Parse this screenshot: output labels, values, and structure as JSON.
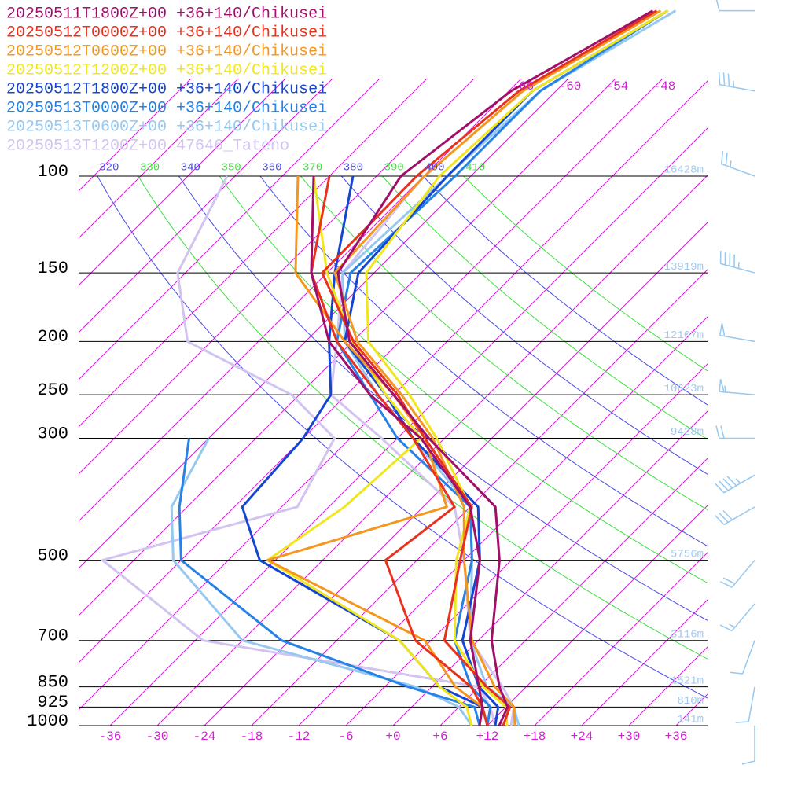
{
  "chart_data": {
    "type": "skewt",
    "pressure_levels": [
      1000,
      925,
      850,
      700,
      500,
      400,
      300,
      250,
      200,
      150,
      100,
      70,
      50
    ],
    "series": [
      {
        "name": "20250511T1800Z+00 +36+140/Chikusei",
        "color": "#a0106a",
        "temperature": [
          13.5,
          12.2,
          8.6,
          1.7,
          -7.5,
          -14.8,
          -32,
          -42,
          -54.4,
          -64.6,
          -68.9,
          -65.7,
          -57.9
        ],
        "dewpoint": [
          11,
          9,
          6,
          -1,
          -10,
          -18,
          -33,
          -45,
          -57,
          -68,
          -80,
          null,
          null
        ]
      },
      {
        "name": "20250512T0000Z+00 +36+140/Chikusei",
        "color": "#e8321e",
        "temperature": [
          14,
          12.5,
          7,
          -4.3,
          -12.5,
          -17.8,
          -32.5,
          -41.5,
          -53.9,
          -66.6,
          -66.9,
          -64.7,
          -57.4
        ],
        "dewpoint": [
          12,
          9,
          5,
          -8,
          -22,
          -20,
          -34,
          -44,
          -56,
          -68,
          -78,
          null,
          null
        ]
      },
      {
        "name": "20250512T0600Z+00 +36+140/Chikusei",
        "color": "#f5961e",
        "temperature": [
          15.5,
          13,
          8,
          -0.8,
          -12,
          -18.8,
          -31.5,
          -41,
          -53.4,
          -65,
          -65.9,
          -64.2,
          -56.9
        ],
        "dewpoint": [
          11,
          9,
          3,
          -6.8,
          -37,
          -21,
          -32.5,
          -42,
          -55,
          -70,
          -82,
          null,
          null
        ]
      },
      {
        "name": "20250512T1200Z+00 +36+140/Chikusei",
        "color": "#f0e61e",
        "temperature": [
          14.5,
          12,
          6.5,
          -3,
          -13,
          -18,
          -31,
          -40,
          -52,
          -61,
          -64,
          -63,
          -56
        ],
        "dewpoint": [
          10,
          7,
          1,
          -10,
          -37,
          -34,
          -33,
          -43,
          -54,
          -66,
          -80,
          null,
          null
        ]
      },
      {
        "name": "20250512T1800Z+00 +36+140/Chikusei",
        "color": "#1446d2",
        "temperature": [
          13,
          11,
          6,
          -2,
          -10,
          -17,
          -34,
          -43,
          -55,
          -62,
          -63,
          -63,
          -56
        ],
        "dewpoint": [
          12,
          9,
          1,
          -10,
          -38,
          -47,
          -48,
          -50,
          -57,
          -65,
          -75,
          null,
          null
        ]
      },
      {
        "name": "20250513T0000Z+00 +36+140/Chikusei",
        "color": "#2882e6",
        "temperature": [
          12,
          10,
          5,
          -3,
          -11,
          -18,
          -36,
          -45,
          -56,
          -63,
          -62,
          -62,
          -56
        ],
        "dewpoint": [
          11,
          8,
          -3,
          -25,
          -48,
          -55,
          -62.5,
          null,
          null,
          null,
          null,
          null,
          null
        ]
      },
      {
        "name": "20250513T0600Z+00 +36+140/Chikusei",
        "color": "#96c8f0",
        "temperature": [
          16,
          13,
          7,
          -1,
          -11,
          -18,
          -34,
          -44,
          -55,
          -64,
          -63,
          -62,
          -55
        ],
        "dewpoint": [
          10,
          6,
          -2,
          -30,
          -49,
          -56,
          -60,
          null,
          null,
          null,
          null,
          null,
          null
        ]
      },
      {
        "name": "20250513T1200Z+00 47646_Tateno",
        "color": "#d2c3f0",
        "temperature": [
          15,
          13,
          9,
          -1,
          -12,
          -20,
          -38,
          -50,
          -56,
          -64,
          -66,
          null,
          null
        ],
        "dewpoint": [
          13,
          10,
          6,
          -35,
          -58,
          -40,
          -44,
          -55,
          -75,
          -85,
          -91,
          null,
          null
        ]
      }
    ],
    "yticks": [
      100,
      150,
      200,
      250,
      300,
      500,
      700,
      850,
      925,
      1000
    ],
    "ylim": [
      1000,
      50
    ],
    "log_scale": true,
    "height_labels": [
      "16428m",
      "13919m",
      "12107m",
      "10623m",
      "9428m",
      "5756m",
      "3116m",
      "1521m",
      "810m",
      "141m"
    ],
    "xticks": [
      -36,
      -30,
      -24,
      -18,
      -12,
      {
        "value": -6,
        "label": "-6"
      },
      {
        "value": 0,
        "label": "+0"
      },
      {
        "value": 6,
        "label": "+6"
      },
      {
        "value": 12,
        "label": "+12"
      },
      {
        "value": 18,
        "label": "+18"
      },
      {
        "value": 24,
        "label": "+24"
      },
      {
        "value": 30,
        "label": "+30"
      },
      {
        "value": 36,
        "label": "+36"
      }
    ],
    "top_isotherm_labels": [
      -66,
      -60,
      -54,
      -48
    ],
    "isotherms": [
      -108,
      -102,
      -96,
      -90,
      -84,
      -78,
      -72,
      -66,
      -60,
      -54,
      -48,
      -42,
      -36,
      -30,
      -24,
      -18,
      -12,
      -6,
      0,
      6,
      12,
      18,
      24,
      30,
      36
    ],
    "isotherm_color": "#d020d0",
    "adiabats": [
      320,
      330,
      340,
      350,
      360,
      370,
      380,
      390,
      400,
      410
    ],
    "adiabat_colors": [
      "#4a4ae6",
      "#40e040"
    ],
    "wind_pressure": [
      50,
      70,
      100,
      150,
      200,
      250,
      300,
      350,
      400,
      500,
      600,
      700,
      850,
      1000
    ],
    "wind_direction": [
      270,
      280,
      290,
      285,
      280,
      275,
      270,
      240,
      240,
      220,
      220,
      200,
      190,
      180
    ],
    "wind_speed": [
      10,
      35,
      25,
      45,
      50,
      55,
      20,
      45,
      30,
      20,
      15,
      10,
      10,
      10
    ],
    "wind_color": "#96c8f0"
  }
}
